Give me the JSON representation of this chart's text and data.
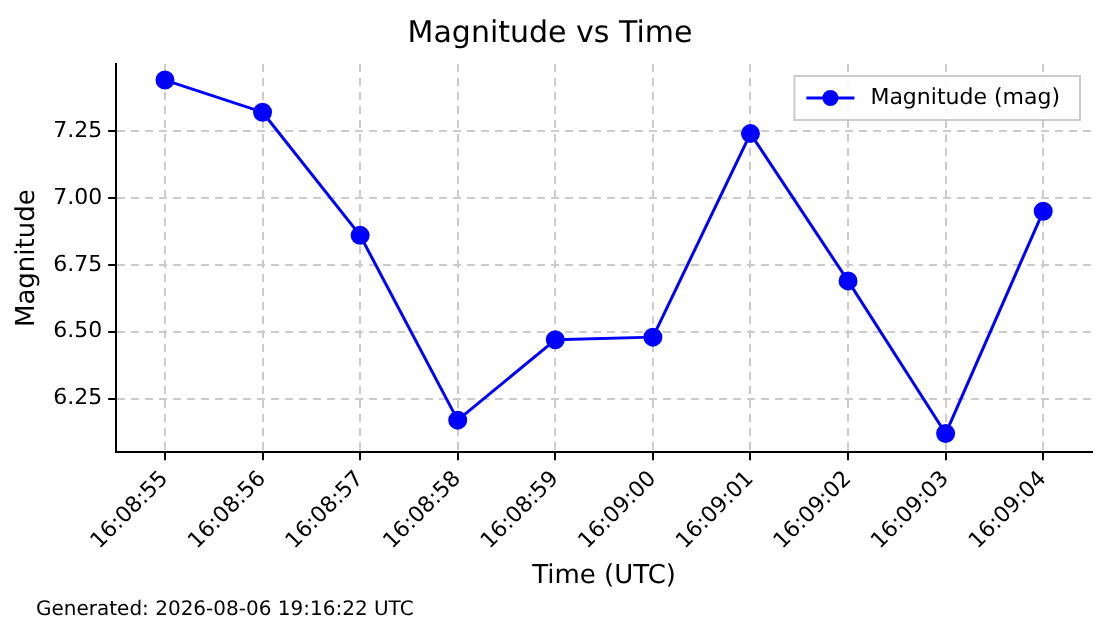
{
  "chart_data": {
    "type": "line",
    "title": "Magnitude vs Time",
    "xlabel": "Time (UTC)",
    "ylabel": "Magnitude",
    "categories": [
      "16:08:55",
      "16:08:56",
      "16:08:57",
      "16:08:58",
      "16:08:59",
      "16:09:00",
      "16:09:01",
      "16:09:02",
      "16:09:03",
      "16:09:04"
    ],
    "series": [
      {
        "name": "Magnitude (mag)",
        "color": "#0000ff",
        "values": [
          7.44,
          7.32,
          6.86,
          6.17,
          6.47,
          6.48,
          7.24,
          6.69,
          6.12,
          6.95
        ]
      }
    ],
    "ylim": [
      6.05,
      7.5
    ],
    "yticks": [
      6.25,
      {
        "value": 6.5,
        "label": "6.50"
      },
      6.75,
      {
        "value": 7,
        "label": "7.00"
      },
      7.25
    ],
    "grid": true,
    "legend": "top right",
    "marker": "circle",
    "line_style": "solid",
    "annotations": [
      "Generated: 2026-08-06 19:16:22 UTC"
    ]
  }
}
